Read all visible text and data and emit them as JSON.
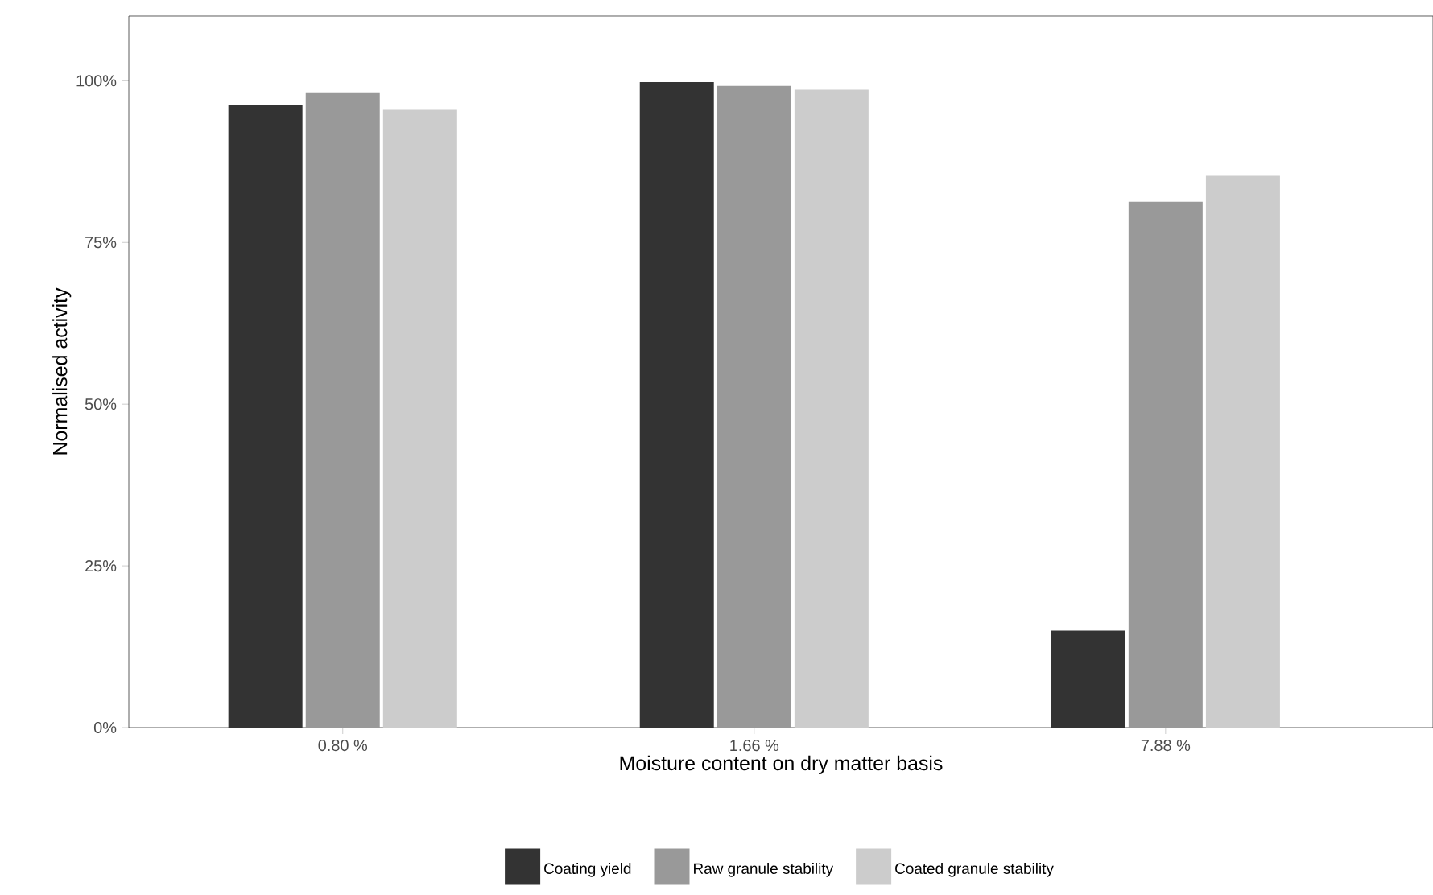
{
  "chart_data": {
    "type": "bar",
    "xlabel": "Moisture content on dry matter basis",
    "ylabel": "Normalised activity",
    "categories": [
      "0.80 %",
      "1.66 %",
      "7.88 %"
    ],
    "series": [
      {
        "name": "Coating yield",
        "color": "#333333",
        "values": [
          96.2,
          99.8,
          15
        ]
      },
      {
        "name": "Raw granule stability",
        "color": "#999999",
        "values": [
          98.2,
          99.2,
          81.3
        ]
      },
      {
        "name": "Coated granule stability",
        "color": "#cccccc",
        "values": [
          95.5,
          98.6,
          85.3
        ]
      }
    ],
    "ylim": [
      0,
      110
    ],
    "yticks": [
      {
        "value": 0,
        "label": "0%"
      },
      {
        "value": 25,
        "label": "25%"
      },
      {
        "value": 50,
        "label": "50%"
      },
      {
        "value": 75,
        "label": "75%"
      },
      {
        "value": 100,
        "label": "100%"
      }
    ],
    "grid": false,
    "legend": "bottom"
  }
}
